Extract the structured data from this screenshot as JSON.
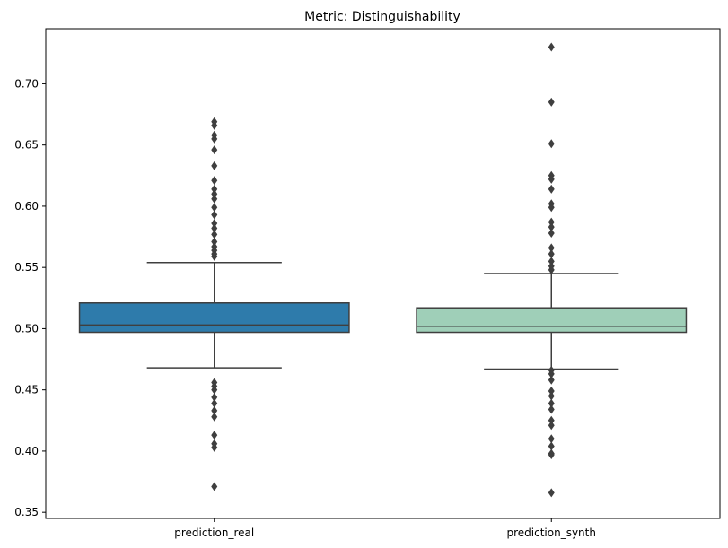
{
  "chart_data": {
    "type": "box",
    "title": "Metric: Distinguishability",
    "xlabel": "",
    "ylabel": "",
    "ylim": [
      0.345,
      0.745
    ],
    "yticks": [
      0.35,
      0.4,
      0.45,
      0.5,
      0.55,
      0.6,
      0.65,
      0.7
    ],
    "ytick_labels": [
      "0.35",
      "0.40",
      "0.45",
      "0.50",
      "0.55",
      "0.60",
      "0.65",
      "0.70"
    ],
    "categories": [
      "prediction_real",
      "prediction_synth"
    ],
    "colors": [
      "#2e7bab",
      "#9fcfb8"
    ],
    "grid": false,
    "series": [
      {
        "category": "prediction_real",
        "whislo": 0.468,
        "q1": 0.497,
        "median": 0.503,
        "q3": 0.521,
        "whishi": 0.554,
        "fliers": [
          0.669,
          0.666,
          0.658,
          0.655,
          0.646,
          0.633,
          0.621,
          0.614,
          0.61,
          0.606,
          0.599,
          0.593,
          0.586,
          0.582,
          0.577,
          0.571,
          0.567,
          0.564,
          0.561,
          0.559,
          0.456,
          0.453,
          0.45,
          0.444,
          0.439,
          0.433,
          0.428,
          0.413,
          0.406,
          0.403,
          0.371
        ]
      },
      {
        "category": "prediction_synth",
        "whislo": 0.467,
        "q1": 0.497,
        "median": 0.502,
        "q3": 0.517,
        "whishi": 0.545,
        "fliers": [
          0.73,
          0.685,
          0.651,
          0.625,
          0.622,
          0.614,
          0.602,
          0.599,
          0.587,
          0.583,
          0.578,
          0.566,
          0.561,
          0.555,
          0.551,
          0.548,
          0.466,
          0.463,
          0.458,
          0.449,
          0.445,
          0.439,
          0.434,
          0.425,
          0.421,
          0.41,
          0.404,
          0.398,
          0.397,
          0.366
        ]
      }
    ]
  }
}
